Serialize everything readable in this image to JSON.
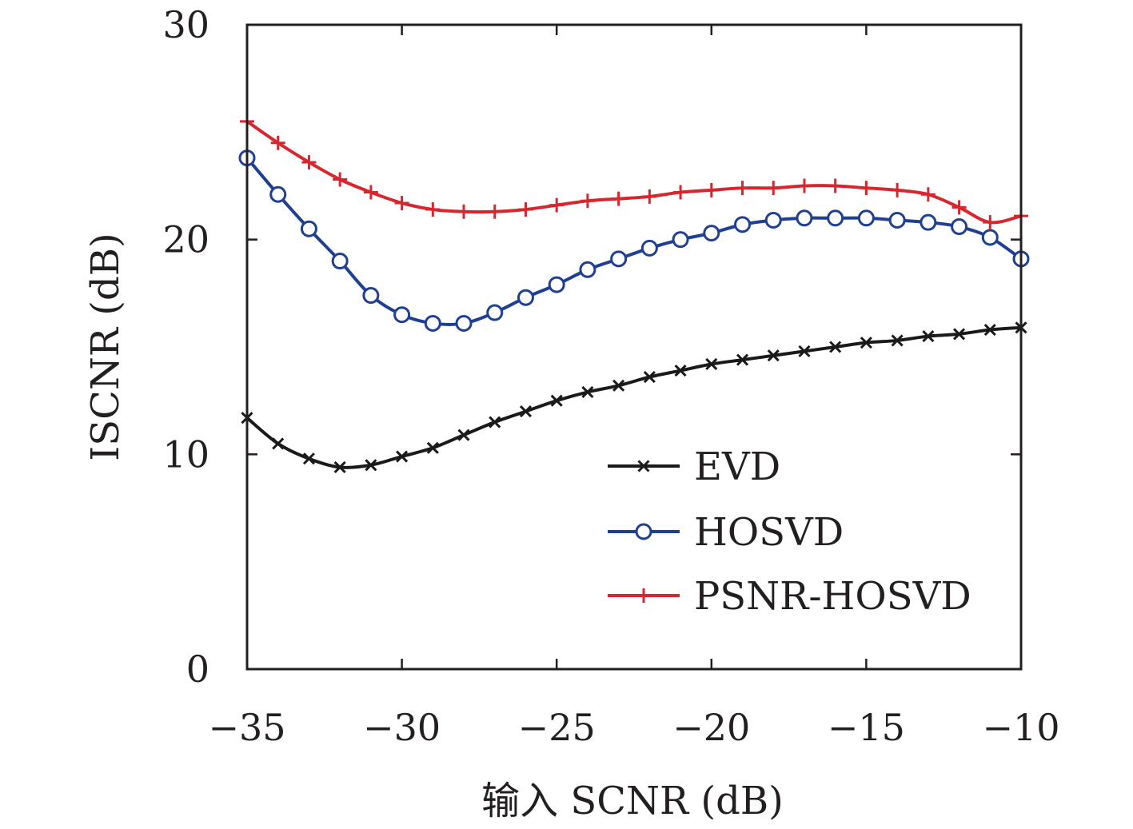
{
  "chart_data": {
    "type": "line",
    "title": "",
    "xlabel": "输入 SCNR (dB)",
    "ylabel": "ISCNR (dB)",
    "xlim": [
      -35,
      -10
    ],
    "ylim": [
      0,
      30
    ],
    "xticks": [
      -35,
      -30,
      -25,
      -20,
      -15,
      -10
    ],
    "yticks": [
      0,
      10,
      20,
      30
    ],
    "xtick_labels": [
      "−35",
      "−30",
      "−25",
      "−20",
      "−15",
      "−10"
    ],
    "ytick_labels": [
      "0",
      "10",
      "20",
      "30"
    ],
    "grid": false,
    "legend_position": "bottom-right",
    "x": [
      -35,
      -34,
      -33,
      -32,
      -31,
      -30,
      -29,
      -28,
      -27,
      -26,
      -25,
      -24,
      -23,
      -22,
      -21,
      -20,
      -19,
      -18,
      -17,
      -16,
      -15,
      -14,
      -13,
      -12,
      -11,
      -10
    ],
    "series": [
      {
        "name": "EVD",
        "color": "#1a1a1a",
        "marker": "x",
        "values": [
          11.7,
          10.5,
          9.8,
          9.4,
          9.5,
          9.9,
          10.3,
          10.9,
          11.5,
          12.0,
          12.5,
          12.9,
          13.2,
          13.6,
          13.9,
          14.2,
          14.4,
          14.6,
          14.8,
          15.0,
          15.2,
          15.3,
          15.5,
          15.6,
          15.8,
          15.9
        ]
      },
      {
        "name": "HOSVD",
        "color": "#1f3f93",
        "marker": "o",
        "values": [
          23.8,
          22.1,
          20.5,
          19.0,
          17.4,
          16.5,
          16.1,
          16.1,
          16.6,
          17.3,
          17.9,
          18.6,
          19.1,
          19.6,
          20.0,
          20.3,
          20.7,
          20.9,
          21.0,
          21.0,
          21.0,
          20.9,
          20.8,
          20.6,
          20.1,
          19.1
        ]
      },
      {
        "name": "PSNR-HOSVD",
        "color": "#d7262e",
        "marker": "+",
        "values": [
          25.5,
          24.5,
          23.6,
          22.8,
          22.2,
          21.7,
          21.4,
          21.3,
          21.3,
          21.4,
          21.6,
          21.8,
          21.9,
          22.0,
          22.2,
          22.3,
          22.4,
          22.4,
          22.5,
          22.5,
          22.4,
          22.3,
          22.1,
          21.5,
          20.8,
          21.1
        ]
      }
    ]
  }
}
